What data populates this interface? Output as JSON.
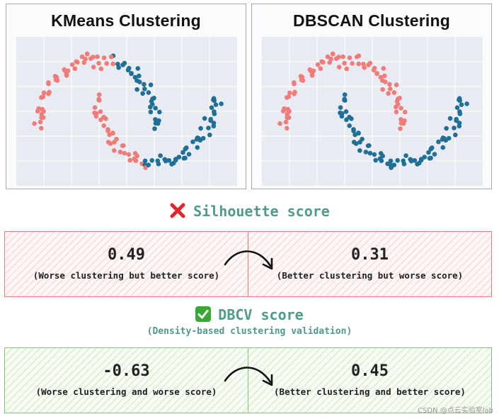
{
  "panels": {
    "kmeans": {
      "title": "KMeans Clustering"
    },
    "dbscan": {
      "title": "DBSCAN Clustering"
    }
  },
  "colors": {
    "cluster_red": "#f07c79",
    "cluster_blue": "#1f6f96",
    "grid_bg": "#e8ebf2",
    "grid_line": "#ffffff",
    "cross": "#e3262d",
    "check_bg": "#3aa835"
  },
  "icons": {
    "silhouette": "cross-mark-icon",
    "dbcv": "check-mark-icon",
    "arrow": "curved-arrow-icon"
  },
  "silhouette": {
    "title": "Silhouette score",
    "left": {
      "value": "0.49",
      "note": "(Worse clustering but better score)"
    },
    "right": {
      "value": "0.31",
      "note": "(Better clustering but worse score)"
    }
  },
  "dbcv": {
    "title": "DBCV score",
    "subtitle": "(Density-based clustering validation)",
    "left": {
      "value": "-0.63",
      "note": "(Worse clustering and worse score)"
    },
    "right": {
      "value": "0.45",
      "note": "(Better clustering and better score)"
    }
  },
  "watermark": "CSDN @点云实验室lab"
}
